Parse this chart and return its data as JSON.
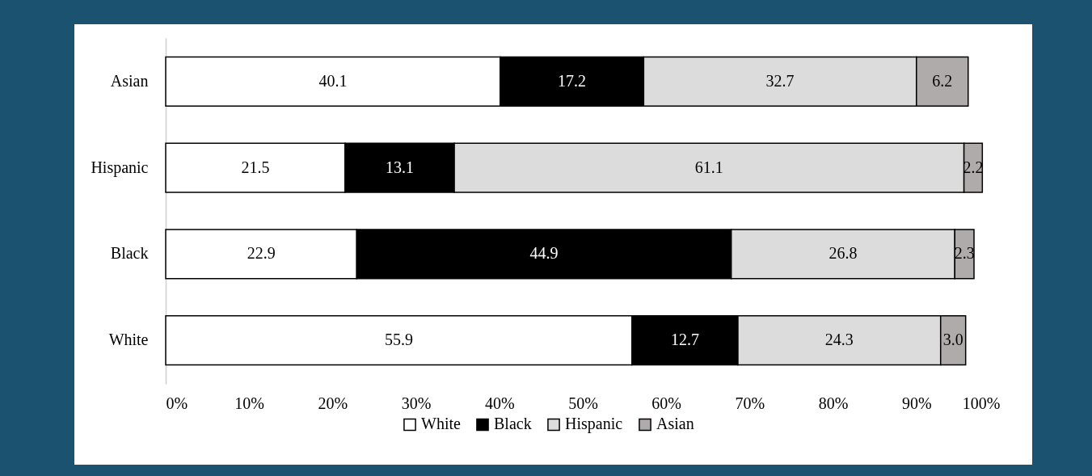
{
  "chart_data": {
    "type": "bar",
    "orientation": "horizontal",
    "stacked": true,
    "categories": [
      "Asian",
      "Hispanic",
      "Black",
      "White"
    ],
    "series": [
      {
        "name": "White",
        "color": "#ffffff",
        "values": [
          40.1,
          21.5,
          22.9,
          55.9
        ]
      },
      {
        "name": "Black",
        "color": "#000000",
        "values": [
          17.2,
          13.1,
          44.9,
          12.7
        ]
      },
      {
        "name": "Hispanic",
        "color": "#dcdcdc",
        "values": [
          32.7,
          61.1,
          26.8,
          24.3
        ]
      },
      {
        "name": "Asian",
        "color": "#afabab",
        "values": [
          6.2,
          2.2,
          2.3,
          3.0
        ],
        "value_labels": [
          "6.2",
          "2.2",
          "2.3",
          "3.0"
        ]
      }
    ],
    "data_labels": true,
    "xlim": [
      0,
      100
    ],
    "xticks": [
      {
        "value": 0,
        "label": "0%"
      },
      {
        "value": 10,
        "label": "10%"
      },
      {
        "value": 20,
        "label": "20%"
      },
      {
        "value": 30,
        "label": "30%"
      },
      {
        "value": 40,
        "label": "40%"
      },
      {
        "value": 50,
        "label": "50%"
      },
      {
        "value": 60,
        "label": "60%"
      },
      {
        "value": 70,
        "label": "70%"
      },
      {
        "value": 80,
        "label": "80%"
      },
      {
        "value": 90,
        "label": "90%"
      },
      {
        "value": 100,
        "label": "100%"
      }
    ],
    "grid": false,
    "legend": "bottom"
  }
}
